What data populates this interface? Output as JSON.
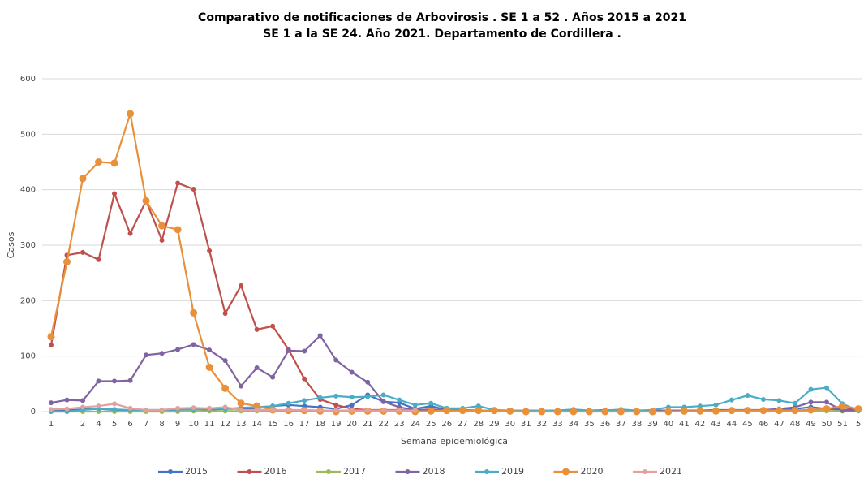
{
  "chart_data": {
    "type": "line",
    "title": "Comparativo  de notificaciones  de Arbovirosis . SE 1 a 52 . Años 2015 a 2021",
    "subtitle": "SE 1 a la SE 24. Año 2021.  Departamento de Cordillera .",
    "x_label": "Semana epidemiológica",
    "y_label": "Casos",
    "categories": [
      "1",
      null,
      "2",
      "4",
      "5",
      "6",
      "7",
      "8",
      "9",
      "10",
      "11",
      "12",
      "13",
      "14",
      "15",
      "16",
      "17",
      "18",
      "19",
      "20",
      "21",
      "22",
      "23",
      "24",
      "25",
      "26",
      "27",
      "28",
      "29",
      "30",
      "31",
      "32",
      "33",
      "34",
      "35",
      "36",
      "37",
      "38",
      "39",
      "40",
      "41",
      "42",
      "43",
      "44",
      "45",
      "46",
      "47",
      "48",
      "49",
      "50",
      "51",
      "5"
    ],
    "ylim": [
      0,
      600
    ],
    "yticks": [
      0,
      100,
      200,
      300,
      400,
      500,
      600
    ],
    "grid": true,
    "legend": "bottom",
    "series": [
      {
        "name": "2015",
        "color": "#4472c4",
        "values": [
          2,
          2,
          4,
          5,
          3,
          2,
          2,
          1,
          3,
          5,
          3,
          5,
          5,
          6,
          10,
          12,
          10,
          8,
          5,
          12,
          30,
          18,
          16,
          5,
          10,
          3,
          3,
          2,
          2,
          1,
          1,
          1,
          2,
          1,
          1,
          2,
          2,
          1,
          2,
          1,
          1,
          2,
          2,
          2,
          2,
          2,
          3,
          5,
          8,
          5,
          3,
          3
        ]
      },
      {
        "name": "2016",
        "color": "#c0504d",
        "values": [
          120,
          282,
          287,
          274,
          393,
          321,
          380,
          309,
          412,
          401,
          290,
          177,
          227,
          148,
          154,
          112,
          59,
          22,
          12,
          5,
          3,
          3,
          3,
          2,
          2,
          2,
          2,
          2,
          2,
          2,
          2,
          1,
          2,
          1,
          1,
          1,
          2,
          1,
          1,
          1,
          2,
          2,
          2,
          2,
          2,
          2,
          2,
          2,
          3,
          5,
          8,
          3
        ]
      },
      {
        "name": "2017",
        "color": "#9bbb59",
        "values": [
          0,
          0,
          0,
          0,
          0,
          0,
          0,
          0,
          0,
          1,
          1,
          1,
          1,
          1,
          1,
          1,
          1,
          1,
          1,
          1,
          1,
          1,
          1,
          1,
          1,
          1,
          1,
          1,
          1,
          1,
          1,
          1,
          1,
          1,
          1,
          1,
          1,
          1,
          1,
          1,
          1,
          1,
          1,
          1,
          1,
          1,
          1,
          1,
          1,
          1,
          1,
          1
        ]
      },
      {
        "name": "2018",
        "color": "#8064a2",
        "values": [
          16,
          21,
          20,
          55,
          55,
          56,
          102,
          105,
          112,
          121,
          111,
          92,
          46,
          79,
          62,
          110,
          109,
          137,
          93,
          71,
          53,
          18,
          8,
          3,
          4,
          3,
          3,
          2,
          2,
          2,
          2,
          2,
          2,
          2,
          2,
          3,
          2,
          2,
          2,
          2,
          2,
          2,
          3,
          3,
          3,
          3,
          5,
          8,
          17,
          17,
          2,
          2
        ]
      },
      {
        "name": "2019",
        "color": "#4bacc6",
        "values": [
          0,
          0,
          3,
          5,
          4,
          3,
          3,
          3,
          4,
          4,
          5,
          5,
          7,
          8,
          10,
          15,
          20,
          25,
          28,
          26,
          27,
          30,
          21,
          12,
          15,
          6,
          6,
          10,
          3,
          2,
          2,
          2,
          2,
          4,
          2,
          2,
          4,
          2,
          3,
          8,
          8,
          10,
          12,
          21,
          29,
          22,
          20,
          15,
          40,
          43,
          14,
          2
        ]
      },
      {
        "name": "2020",
        "color": "#e8913a",
        "values": [
          135,
          270,
          420,
          450,
          448,
          537,
          380,
          335,
          328,
          178,
          80,
          42,
          15,
          10,
          3,
          2,
          2,
          1,
          0,
          1,
          1,
          1,
          1,
          0,
          1,
          2,
          2,
          2,
          2,
          1,
          0,
          0,
          0,
          0,
          0,
          0,
          0,
          0,
          0,
          0,
          1,
          1,
          1,
          2,
          2,
          2,
          2,
          2,
          3,
          5,
          10,
          5
        ]
      },
      {
        "name": "2021",
        "color": "#e3a09f",
        "values": [
          4,
          5,
          8,
          10,
          14,
          6,
          3,
          3,
          6,
          7,
          6,
          8,
          3,
          3,
          3,
          3,
          3,
          2,
          2,
          2,
          2,
          2,
          2,
          2,
          null,
          null,
          null,
          null,
          null,
          null,
          null,
          null,
          null,
          null,
          null,
          null,
          null,
          null,
          null,
          null,
          null,
          null,
          null,
          null,
          null,
          null,
          null,
          null,
          null,
          null,
          null,
          null
        ]
      }
    ]
  }
}
